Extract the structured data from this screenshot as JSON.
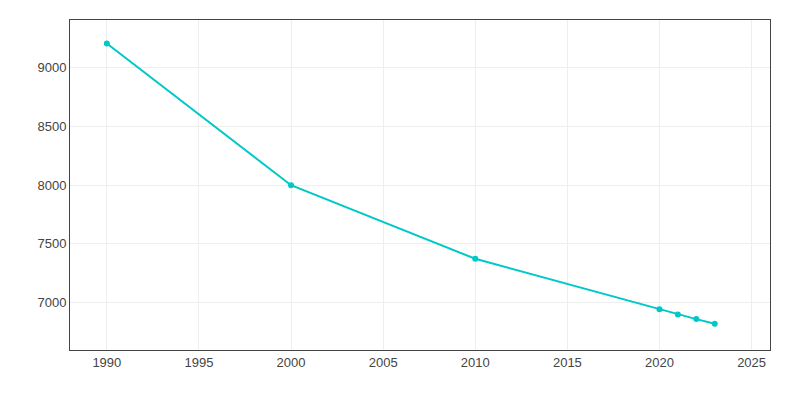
{
  "chart_data": {
    "type": "line",
    "x": [
      1990,
      2000,
      2010,
      2020,
      2021,
      2022,
      2023
    ],
    "values": [
      9200,
      7998,
      7374,
      6946,
      6901,
      6862,
      6823
    ],
    "color": "#00c8c8",
    "marker": "circle",
    "xlim": [
      1988,
      2026
    ],
    "xticks": [
      1990,
      1995,
      2000,
      2005,
      2010,
      2015,
      2020,
      2025
    ],
    "ylim": [
      6600,
      9400
    ],
    "yticks": [
      7000,
      7500,
      8000,
      8500,
      9000
    ],
    "grid": true
  }
}
